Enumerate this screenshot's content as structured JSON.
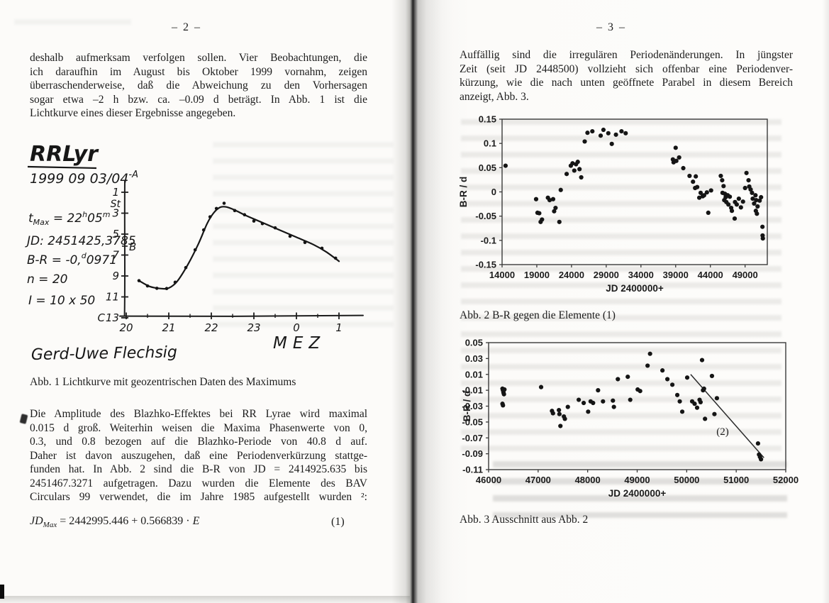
{
  "left_page": {
    "page_number": "– 2 –",
    "para1_lines": [
      "deshalb aufmerksam verfolgen sollen. Vier Beobachtungen, die",
      "ich daraufhin im August bis Oktober 1999 vornahm, zeigen",
      "überraschenderweise, daß die Abweichung zu den Vorhersagen",
      "sogar etwa –2 h bzw. ca. –0.09 d beträgt. In Abb. 1 ist die",
      "Lichtkurve eines dieser Ergebnisse angegeben."
    ],
    "figure1": {
      "title": "RRLyr",
      "date_main": "1999 09 03/04",
      "date_sup": "-A",
      "tmax_t": "t",
      "tmax_sub": "Max",
      "tmax_eq": " = 22",
      "tmax_sup_h": "h",
      "tmax_min": "05",
      "tmax_sup_m": "m",
      "jd_line": "JD: 2451425,3785",
      "br_pre": "B-R = -0,",
      "br_sup": "d",
      "br_post": "0971",
      "n_line": "n = 20",
      "i_line": "I = 10 x 50",
      "label_st": "St",
      "label_b": "B",
      "label_c": "C",
      "xlabel": "MEZ",
      "signature": "Gerd-Uwe Flechsig"
    },
    "fig1_caption": "Abb. 1 Lichtkurve mit geozentrischen Daten des Maximums",
    "para2_lines": [
      "Die Amplitude des Blazhko-Effektes bei RR Lyrae wird maximal",
      "0.015 d groß. Weiterhin weisen die Maxima Phasenwerte von 0,",
      "0.3, und 0.8 bezogen auf die Blazhko-Periode von 40.8 d auf.",
      "Daher ist davon auszugehen, daß eine Periodenverkürzung stattge-",
      "funden hat. In Abb. 2 sind die B-R von JD = 2414925.635 bis",
      "2451467.3271 aufgetragen. Dazu wurden die Elemente des BAV",
      "Circulars 99 verwendet, die im Jahre 1985 aufgestellt wurden ²:"
    ],
    "equation": {
      "jd": "JD",
      "sub": "Max",
      "body": " = 2442995.446 + 0.566839 · ",
      "e": "E",
      "number": "(1)"
    }
  },
  "right_page": {
    "page_number": "– 3 –",
    "para1_lines": [
      "Auffällig sind die irregulären Periodenänderungen. In jüngster",
      "Zeit (seit JD 2448500) vollzieht sich offenbar eine Periodenver-",
      "kürzung, wie die nach unten geöffnete Parabel in diesem Bereich",
      "anzeigt, Abb. 3."
    ],
    "fig2_caption": "Abb. 2 B-R gegen die Elemente (1)",
    "fig3_caption": "Abb. 3 Ausschnitt aus Abb. 2"
  },
  "chart_data": [
    {
      "id": "abb1",
      "type": "line",
      "title": "RRLyr",
      "xlabel": "MEZ",
      "x_ticks": [
        20,
        21,
        22,
        23,
        24,
        25
      ],
      "x_tick_labels": [
        "20",
        "21",
        "22",
        "23",
        "0",
        "1"
      ],
      "y_ticks": [
        1,
        3,
        5,
        7,
        9,
        11,
        13
      ],
      "y_tick_labels": [
        "1",
        "3",
        "5",
        "7",
        "9",
        "11",
        "13"
      ],
      "curve": [
        [
          20.3,
          9.45
        ],
        [
          20.55,
          10.0
        ],
        [
          20.8,
          10.2
        ],
        [
          21.0,
          10.15
        ],
        [
          21.2,
          9.5
        ],
        [
          21.45,
          7.9
        ],
        [
          21.7,
          5.9
        ],
        [
          21.9,
          4.0
        ],
        [
          22.05,
          3.0
        ],
        [
          22.2,
          2.45
        ],
        [
          22.35,
          2.4
        ],
        [
          22.55,
          2.7
        ],
        [
          22.8,
          3.2
        ],
        [
          23.2,
          3.9
        ],
        [
          23.6,
          4.6
        ],
        [
          24.0,
          5.3
        ],
        [
          24.4,
          6.0
        ],
        [
          24.7,
          6.7
        ],
        [
          25.0,
          7.6
        ]
      ],
      "points": [
        [
          20.3,
          9.45
        ],
        [
          20.5,
          9.95
        ],
        [
          20.72,
          10.18
        ],
        [
          20.95,
          10.2
        ],
        [
          21.15,
          9.6
        ],
        [
          21.4,
          8.2
        ],
        [
          21.62,
          6.5
        ],
        [
          21.82,
          4.6
        ],
        [
          21.97,
          3.35
        ],
        [
          22.12,
          2.55
        ],
        [
          22.3,
          2.05
        ],
        [
          22.55,
          2.75
        ],
        [
          22.78,
          3.15
        ],
        [
          23.0,
          3.75
        ],
        [
          23.2,
          4.0
        ],
        [
          23.5,
          4.4
        ],
        [
          23.85,
          5.2
        ],
        [
          24.2,
          5.8
        ],
        [
          24.6,
          6.35
        ],
        [
          24.92,
          7.3
        ]
      ]
    },
    {
      "id": "abb2",
      "type": "scatter",
      "xlabel": "JD 2400000+",
      "ylabel": "B-R / d",
      "xlim": [
        14000,
        52200
      ],
      "ylim": [
        -0.15,
        0.15
      ],
      "x_ticks": [
        14000,
        19000,
        24000,
        29000,
        34000,
        39000,
        44000,
        49000
      ],
      "x_tick_labels": [
        "14000",
        "19000",
        "24000",
        "29000",
        "34000",
        "39000",
        "44000",
        "49000"
      ],
      "y_ticks": [
        0.15,
        0.1,
        0.05,
        0,
        -0.05,
        -0.1,
        -0.15
      ],
      "y_tick_labels": [
        "0.15",
        "0.1",
        "0.05",
        "0",
        "-0.05",
        "-0.1",
        "-0.15"
      ],
      "points": [
        [
          14500,
          0.054
        ],
        [
          18900,
          -0.015
        ],
        [
          19100,
          -0.043
        ],
        [
          19350,
          -0.044
        ],
        [
          19550,
          -0.062
        ],
        [
          19750,
          -0.057
        ],
        [
          20600,
          -0.012
        ],
        [
          20850,
          -0.017
        ],
        [
          21350,
          -0.015
        ],
        [
          21500,
          -0.04
        ],
        [
          21700,
          -0.033
        ],
        [
          22250,
          -0.062
        ],
        [
          22450,
          0.004
        ],
        [
          23300,
          0.037
        ],
        [
          23900,
          0.054
        ],
        [
          24150,
          0.059
        ],
        [
          24400,
          0.044
        ],
        [
          24650,
          0.057
        ],
        [
          24900,
          0.062
        ],
        [
          25150,
          0.047
        ],
        [
          25400,
          0.03
        ],
        [
          25900,
          0.104
        ],
        [
          26300,
          0.122
        ],
        [
          27000,
          0.125
        ],
        [
          28200,
          0.116
        ],
        [
          28600,
          0.128
        ],
        [
          29300,
          0.121
        ],
        [
          29800,
          0.099
        ],
        [
          30400,
          0.118
        ],
        [
          31200,
          0.125
        ],
        [
          31800,
          0.121
        ],
        [
          38600,
          0.067
        ],
        [
          38700,
          0.061
        ],
        [
          39000,
          0.091
        ],
        [
          39100,
          0.064
        ],
        [
          39500,
          0.071
        ],
        [
          40100,
          0.049
        ],
        [
          41000,
          0.033
        ],
        [
          41500,
          0.021
        ],
        [
          41800,
          0.008
        ],
        [
          41900,
          0.032
        ],
        [
          42100,
          0.01
        ],
        [
          42400,
          -0.012
        ],
        [
          42600,
          -0.002
        ],
        [
          42900,
          -0.009
        ],
        [
          43100,
          -0.007
        ],
        [
          43500,
          -0.001
        ],
        [
          43700,
          -0.043
        ],
        [
          44100,
          0.003
        ],
        [
          45500,
          0.033
        ],
        [
          45700,
          0.024
        ],
        [
          45750,
          -0.002
        ],
        [
          45900,
          0.012
        ],
        [
          46000,
          -0.017
        ],
        [
          46100,
          -0.004
        ],
        [
          46200,
          -0.011
        ],
        [
          46300,
          -0.021
        ],
        [
          46500,
          -0.007
        ],
        [
          46600,
          -0.026
        ],
        [
          46800,
          -0.01
        ],
        [
          47000,
          -0.033
        ],
        [
          47100,
          -0.039
        ],
        [
          47500,
          -0.055
        ],
        [
          47550,
          -0.021
        ],
        [
          47800,
          -0.026
        ],
        [
          48100,
          -0.014
        ],
        [
          48400,
          -0.032
        ],
        [
          48700,
          -0.02
        ],
        [
          49000,
          0.008
        ],
        [
          49200,
          0.039
        ],
        [
          49500,
          0.024
        ],
        [
          49600,
          0.011
        ],
        [
          49800,
          0.005
        ],
        [
          50000,
          -0.002
        ],
        [
          50100,
          -0.014
        ],
        [
          50300,
          -0.024
        ],
        [
          50500,
          -0.007
        ],
        [
          50550,
          -0.039
        ],
        [
          50600,
          -0.017
        ],
        [
          50700,
          -0.045
        ],
        [
          50800,
          -0.03
        ],
        [
          51100,
          -0.018
        ],
        [
          51300,
          -0.011
        ],
        [
          51500,
          -0.072
        ],
        [
          51520,
          -0.09
        ],
        [
          51560,
          -0.096
        ]
      ]
    },
    {
      "id": "abb3",
      "type": "scatter",
      "xlabel": "JD 2400000+",
      "ylabel": "B-R / d",
      "xlim": [
        46000,
        52000
      ],
      "ylim": [
        -0.11,
        0.05
      ],
      "x_ticks": [
        46000,
        47000,
        48000,
        49000,
        50000,
        51000,
        52000
      ],
      "x_tick_labels": [
        "46000",
        "47000",
        "48000",
        "49000",
        "50000",
        "51000",
        "52000"
      ],
      "y_ticks": [
        0.05,
        0.03,
        0.01,
        -0.01,
        -0.03,
        -0.05,
        -0.07,
        -0.09,
        -0.11
      ],
      "y_tick_labels": [
        "0.05",
        "0.03",
        "0.01",
        "-0.01",
        "-0.03",
        "-0.05",
        "-0.07",
        "-0.09",
        "-0.11"
      ],
      "points": [
        [
          46280,
          -0.008
        ],
        [
          46290,
          -0.01
        ],
        [
          46300,
          -0.013
        ],
        [
          46310,
          -0.015
        ],
        [
          46320,
          -0.009
        ],
        [
          46280,
          -0.027
        ],
        [
          46290,
          -0.029
        ],
        [
          47060,
          -0.006
        ],
        [
          47280,
          -0.036
        ],
        [
          47300,
          -0.039
        ],
        [
          47420,
          -0.035
        ],
        [
          47430,
          -0.04
        ],
        [
          47450,
          -0.055
        ],
        [
          47520,
          -0.043
        ],
        [
          47540,
          -0.046
        ],
        [
          47600,
          -0.031
        ],
        [
          47820,
          -0.022
        ],
        [
          47920,
          -0.026
        ],
        [
          48010,
          -0.037
        ],
        [
          48060,
          -0.024
        ],
        [
          48110,
          -0.026
        ],
        [
          48210,
          -0.01
        ],
        [
          48310,
          -0.024
        ],
        [
          48510,
          -0.023
        ],
        [
          48530,
          -0.031
        ],
        [
          48610,
          0.004
        ],
        [
          48810,
          0.007
        ],
        [
          48860,
          -0.022
        ],
        [
          49010,
          -0.009
        ],
        [
          49060,
          -0.011
        ],
        [
          49210,
          0.021
        ],
        [
          49260,
          0.036
        ],
        [
          49510,
          0.015
        ],
        [
          49610,
          0.004
        ],
        [
          49710,
          -0.003
        ],
        [
          49810,
          -0.016
        ],
        [
          49860,
          -0.024
        ],
        [
          49910,
          -0.037
        ],
        [
          50010,
          0.006
        ],
        [
          50110,
          -0.024
        ],
        [
          50160,
          -0.027
        ],
        [
          50210,
          -0.032
        ],
        [
          50260,
          -0.022
        ],
        [
          50280,
          -0.025
        ],
        [
          50310,
          0.028
        ],
        [
          50330,
          -0.01
        ],
        [
          50350,
          -0.008
        ],
        [
          50370,
          -0.046
        ],
        [
          50510,
          0.008
        ],
        [
          50560,
          -0.04
        ],
        [
          50610,
          -0.02
        ],
        [
          51440,
          -0.077
        ],
        [
          51460,
          -0.091
        ],
        [
          51480,
          -0.094
        ],
        [
          51500,
          -0.097
        ]
      ],
      "trend_line": {
        "x1": 50080,
        "y1": 0.01,
        "x2": 51560,
        "y2": -0.095,
        "label": "(2)",
        "label_x": 50600,
        "label_y": -0.066
      }
    }
  ]
}
